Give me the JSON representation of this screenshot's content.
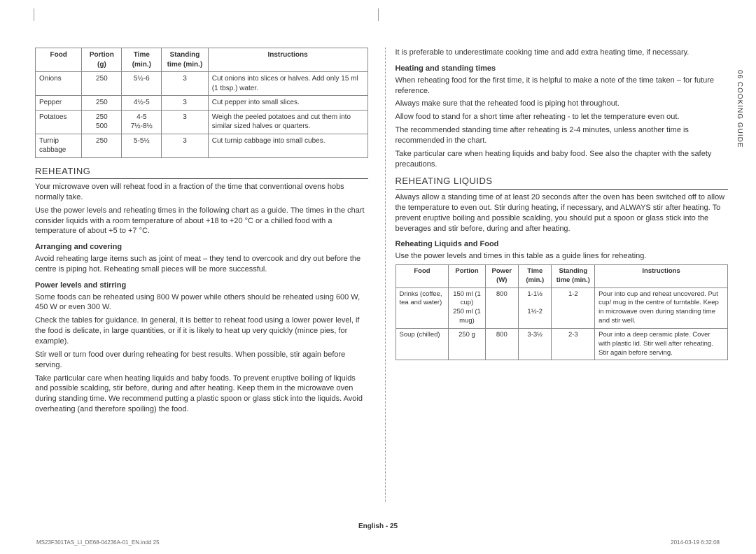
{
  "crop": {
    "show": true
  },
  "side_label": "06 COOKING GUIDE",
  "footer": "English - 25",
  "meta_left": "MS23F301TAS_LI_DE68-04236A-01_EN.indd   25",
  "meta_right": "2014-03-19   ‭6:32:08",
  "table1": {
    "headers": [
      "Food",
      "Portion (g)",
      "Time (min.)",
      "Standing time (min.)",
      "Instructions"
    ],
    "rows": [
      {
        "c": [
          "Onions",
          "250",
          "5½-6",
          "3",
          "Cut onions into slices or halves. Add only 15 ml (1 tbsp.) water."
        ]
      },
      {
        "c": [
          "Pepper",
          "250",
          "4½-5",
          "3",
          "Cut pepper into small slices."
        ]
      },
      {
        "c": [
          "Potatoes",
          "250\n500",
          "4-5\n7½-8½",
          "3",
          "Weigh the peeled potatoes and cut them into similar sized halves or quarters."
        ]
      },
      {
        "c": [
          "Turnip cabbage",
          "250",
          "5-5½",
          "3",
          "Cut turnip cabbage into small cubes."
        ]
      }
    ]
  },
  "left": {
    "reheating_title": "REHEATING",
    "p1": "Your microwave oven will reheat food in a fraction of the time that conventional ovens hobs normally take.",
    "p2": "Use the power levels and reheating times in the following chart as a guide. The times in the chart consider liquids with a room temperature of about +18 to +20 °C or a chilled food with a temperature of about +5 to +7 °C.",
    "sub1": "Arranging and covering",
    "p3": "Avoid reheating large items such as joint of meat – they tend to overcook and dry out before the centre is piping hot. Reheating small pieces will be more successful.",
    "sub2": "Power levels and stirring",
    "p4": "Some foods can be reheated using 800 W power while others should be reheated using 600 W, 450 W or even 300 W.",
    "p5": "Check the tables for guidance. In general, it is better to reheat food using a lower power level, if the food is delicate, in large quantities, or if it is likely to heat up very quickly (mince pies, for example).",
    "p6": "Stir well or turn food over during reheating for best results. When possible, stir again before serving.",
    "p7": "Take particular care when heating liquids and baby foods. To prevent eruptive boiling of liquids and possible scalding, stir before, during and after heating. Keep them in the microwave oven during standing time. We recommend putting a plastic spoon or glass stick into the liquids. Avoid overheating (and therefore spoiling) the food."
  },
  "right": {
    "p0": "It is preferable to underestimate cooking time and add extra heating time, if necessary.",
    "sub1": "Heating and standing times",
    "p1": "When reheating food for the first time, it is helpful to make a note of the time taken – for future reference.",
    "p2": "Always make sure that the reheated food is piping hot throughout.",
    "p3": "Allow food to stand for a short time after reheating - to let the temperature even out.",
    "p4": "The recommended standing time after reheating is 2-4 minutes, unless another time is recommended in the chart.",
    "p5": "Take particular care when heating liquids and baby food. See also the chapter with the safety precautions.",
    "liquids_title": "REHEATING LIQUIDS",
    "p6": "Always allow a standing time of at least 20 seconds after the oven has been switched off to allow the temperature to even out. Stir during heating, if necessary, and ALWAYS stir after heating. To prevent eruptive boiling and possible scalding, you should put a spoon or glass stick into the beverages and stir before, during and after heating.",
    "sub2": "Reheating Liquids and Food",
    "p7": "Use the power levels and times in this table as a guide lines for reheating."
  },
  "table2": {
    "headers": [
      "Food",
      "Portion",
      "Power (W)",
      "Time (min.)",
      "Standing time (min.)",
      "Instructions"
    ],
    "rows": [
      {
        "c": [
          "Drinks (coffee, tea and water)",
          "150 ml (1 cup)\n250 ml (1 mug)",
          "800",
          "1-1½\n\n1½-2",
          "1-2",
          "Pour into cup and reheat uncovered. Put cup/ mug in the centre of turntable. Keep in microwave oven during standing time and stir well."
        ]
      },
      {
        "c": [
          "Soup (chilled)",
          "250 g",
          "800",
          "3-3½",
          "2-3",
          "Pour into a deep ceramic plate. Cover with plastic lid. Stir well after reheating. Stir again before serving."
        ]
      }
    ]
  }
}
